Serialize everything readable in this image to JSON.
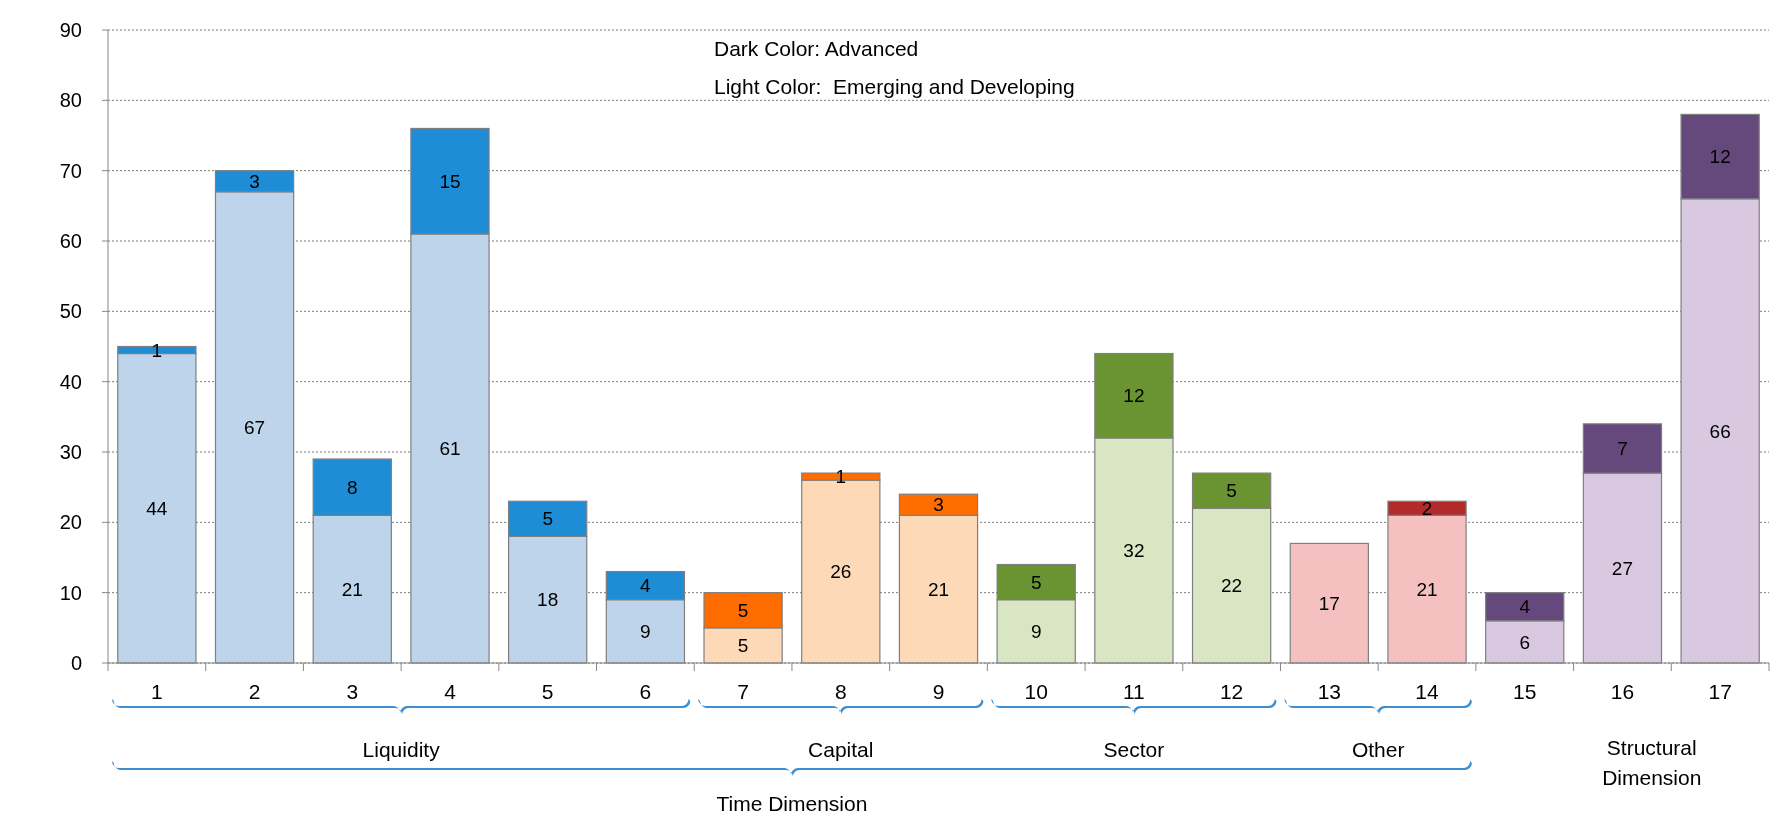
{
  "chart_data": {
    "type": "bar",
    "stacked": true,
    "categories": [
      "1",
      "2",
      "3",
      "4",
      "5",
      "6",
      "7",
      "8",
      "9",
      "10",
      "11",
      "12",
      "13",
      "14",
      "15",
      "16",
      "17"
    ],
    "series": [
      {
        "colors": [
          "#bdd4ea",
          "#bdd4ea",
          "#bdd4ea",
          "#bdd4ea",
          "#bdd4ea",
          "#bdd4ea",
          "#fdd9b8",
          "#fdd9b8",
          "#fdd9b8",
          "#d9e6c3",
          "#d9e6c3",
          "#d9e6c3",
          "#f4c0c0",
          "#f4c0c0",
          "#d8c8e0",
          "#d8c8e0",
          "#d8c8e0"
        ],
        "values": [
          44,
          67,
          21,
          61,
          18,
          9,
          5,
          26,
          21,
          9,
          32,
          22,
          17,
          21,
          6,
          27,
          66
        ]
      },
      {
        "colors": [
          "#1f8dd6",
          "#1f8dd6",
          "#1f8dd6",
          "#1f8dd6",
          "#1f8dd6",
          "#1f8dd6",
          "#ff6d00",
          "#ff6d00",
          "#ff6d00",
          "#6a9431",
          "#6a9431",
          "#6a9431",
          "#b22a2a",
          "#b22a2a",
          "#65497c",
          "#65497c",
          "#65497c"
        ],
        "values": [
          1,
          3,
          8,
          15,
          5,
          4,
          5,
          1,
          3,
          5,
          12,
          5,
          null,
          2,
          4,
          7,
          12
        ]
      }
    ],
    "ylim": [
      0,
      90
    ],
    "yticks": [
      0,
      10,
      20,
      30,
      40,
      50,
      60,
      70,
      80,
      90
    ],
    "grid": "y",
    "data_labels": true,
    "annotations": [
      "Dark Color: Advanced",
      "Light Color:  Emerging and Developing",
      "Liquidity",
      "Capital",
      "Sector",
      "Other",
      "Structural Dimension",
      "Time Dimension"
    ]
  }
}
